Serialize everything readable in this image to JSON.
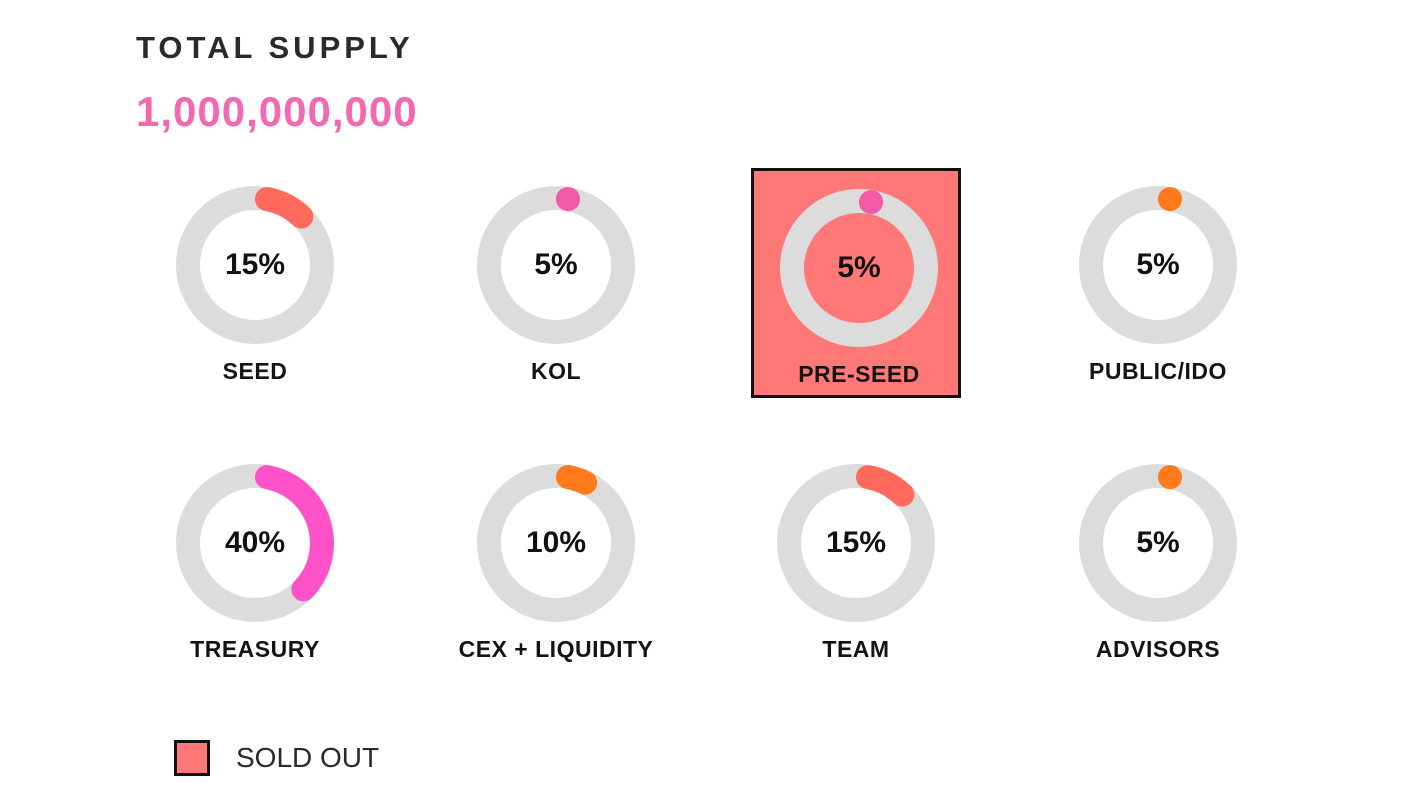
{
  "header": {
    "title": "TOTAL SUPPLY",
    "value": "1,000,000,000"
  },
  "colors": {
    "track": "#dcdcdc",
    "sold_out_fill": "#ff7878",
    "coral": "#ff6a5c",
    "pink": "#f25aa6",
    "orange": "#ff7a1a",
    "supply_value": "#f368b0"
  },
  "chart_data": {
    "type": "pie",
    "series": [
      {
        "category": "SEED",
        "value": 15,
        "label": "15%",
        "color": "#ff6a5c",
        "sold_out": false
      },
      {
        "category": "KOL",
        "value": 5,
        "label": "5%",
        "color": "#f25aa6",
        "sold_out": false
      },
      {
        "category": "PRE-SEED",
        "value": 5,
        "label": "5%",
        "color": "#f25aa6",
        "sold_out": true
      },
      {
        "category": "PUBLIC/IDO",
        "value": 5,
        "label": "5%",
        "color": "#ff7a1a",
        "sold_out": false
      },
      {
        "category": "TREASURY",
        "value": 40,
        "label": "40%",
        "color": "#ff52c8",
        "sold_out": false
      },
      {
        "category": "CEX + LIQUIDITY",
        "value": 10,
        "label": "10%",
        "color": "#ff7a1a",
        "sold_out": false
      },
      {
        "category": "TEAM",
        "value": 15,
        "label": "15%",
        "color": "#ff6a5c",
        "sold_out": false
      },
      {
        "category": "ADVISORS",
        "value": 5,
        "label": "5%",
        "color": "#ff7a1a",
        "sold_out": false
      }
    ],
    "legend": {
      "label": "SOLD OUT",
      "placement": "bottom-left"
    }
  }
}
